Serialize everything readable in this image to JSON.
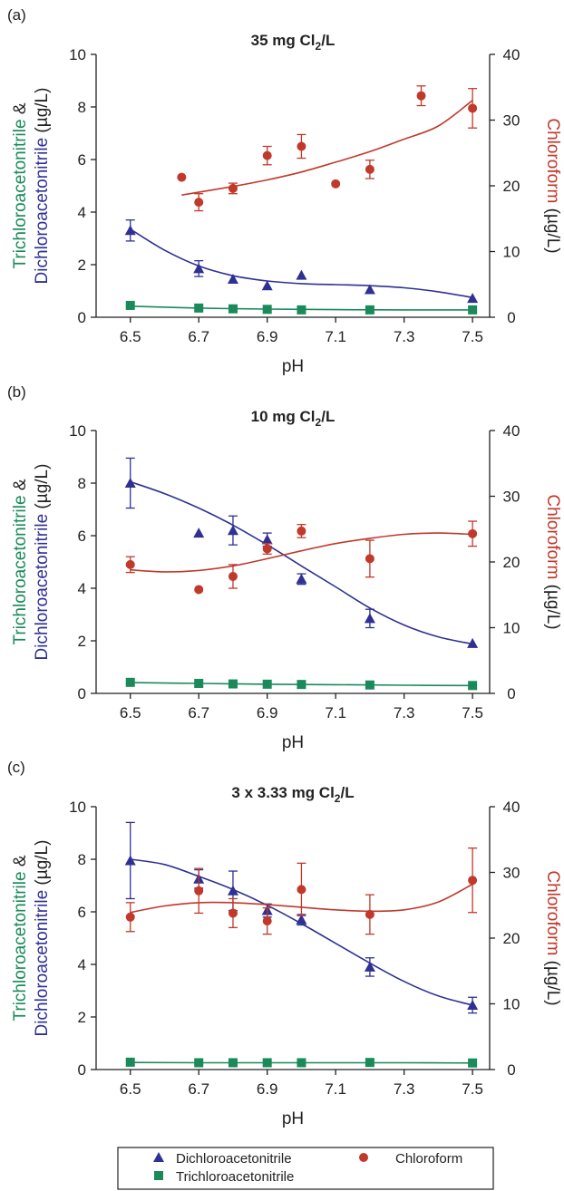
{
  "colors": {
    "dichloro": "#2e3192",
    "trichloro": "#1a8a5a",
    "chloroform": "#c0392b",
    "axis": "#222222"
  },
  "icons": {
    "dichloro": "blue-triangle-marker",
    "trichloro": "green-square-marker",
    "chloroform": "red-circle-marker"
  },
  "legend": {
    "dichloro": "Dichloroacetonitrile",
    "chloroform": "Chloroform",
    "trichloro": "Trichloroacetonitrile"
  },
  "chart_data": [
    {
      "type": "scatter",
      "panel_label": "(a)",
      "title_pre": "35 mg Cl",
      "title_sub": "2",
      "title_post": "/L",
      "xlabel": "pH",
      "ylabel_left_green": "Trichloroacetonitrile",
      "ylabel_left_amp": "&",
      "ylabel_left_blue": "Dichloroacetonitrile",
      "ylabel_left_unit": "(µg/L)",
      "ylabel_right_red": "Chloroform",
      "ylabel_right_unit": "(µg/L)",
      "xlim": [
        6.4,
        7.55
      ],
      "xticks": [
        "6.5",
        "6.7",
        "6.9",
        "7.1",
        "7.3",
        "7.5"
      ],
      "ylim_left": [
        0,
        10
      ],
      "yticks_left": [
        "0",
        "2",
        "4",
        "6",
        "8",
        "10"
      ],
      "ylim_right": [
        0,
        40
      ],
      "yticks_right": [
        "0",
        "10",
        "20",
        "30",
        "40"
      ],
      "series": [
        {
          "name": "Dichloroacetonitrile",
          "axis": "left",
          "marker": "triangle",
          "x": [
            6.5,
            6.7,
            6.8,
            6.9,
            7.0,
            7.2,
            7.5
          ],
          "y": [
            3.3,
            1.85,
            1.45,
            1.2,
            1.6,
            1.05,
            0.72
          ],
          "err": [
            0.4,
            0.3,
            0,
            0,
            0,
            0,
            0
          ],
          "fit": [
            [
              6.5,
              3.35
            ],
            [
              6.6,
              2.55
            ],
            [
              6.7,
              1.95
            ],
            [
              6.8,
              1.58
            ],
            [
              6.9,
              1.38
            ],
            [
              7.0,
              1.28
            ],
            [
              7.1,
              1.24
            ],
            [
              7.2,
              1.2
            ],
            [
              7.3,
              1.12
            ],
            [
              7.4,
              0.97
            ],
            [
              7.5,
              0.75
            ]
          ]
        },
        {
          "name": "Trichloroacetonitrile",
          "axis": "left",
          "marker": "square",
          "x": [
            6.5,
            6.7,
            6.8,
            6.9,
            7.0,
            7.2,
            7.5
          ],
          "y": [
            0.45,
            0.35,
            0.32,
            0.3,
            0.28,
            0.28,
            0.28
          ],
          "err": [
            0,
            0,
            0,
            0,
            0,
            0,
            0
          ],
          "fit": [
            [
              6.5,
              0.42
            ],
            [
              6.7,
              0.35
            ],
            [
              6.9,
              0.31
            ],
            [
              7.1,
              0.29
            ],
            [
              7.3,
              0.28
            ],
            [
              7.5,
              0.28
            ]
          ]
        },
        {
          "name": "Chloroform",
          "axis": "right",
          "marker": "circle",
          "x": [
            6.65,
            6.7,
            6.8,
            6.9,
            7.0,
            7.1,
            7.2,
            7.35,
            7.5
          ],
          "y": [
            21.3,
            17.5,
            19.6,
            24.6,
            26.0,
            20.3,
            22.5,
            33.7,
            31.8
          ],
          "err": [
            0,
            1.3,
            0.8,
            1.4,
            1.8,
            0,
            1.4,
            1.5,
            3.0
          ],
          "fit": [
            [
              6.65,
              18.6
            ],
            [
              6.8,
              19.9
            ],
            [
              6.9,
              20.9
            ],
            [
              7.0,
              22.1
            ],
            [
              7.1,
              23.6
            ],
            [
              7.2,
              25.2
            ],
            [
              7.3,
              27.1
            ],
            [
              7.4,
              29.1
            ],
            [
              7.5,
              33.0
            ]
          ]
        }
      ]
    },
    {
      "type": "scatter",
      "panel_label": "(b)",
      "title_pre": "10 mg Cl",
      "title_sub": "2",
      "title_post": "/L",
      "xlabel": "pH",
      "ylabel_left_green": "Trichloroacetonitrile",
      "ylabel_left_amp": "&",
      "ylabel_left_blue": "Dichloroacetonitrile",
      "ylabel_left_unit": "(µg/L)",
      "ylabel_right_red": "Chloroform",
      "ylabel_right_unit": "(µg/L)",
      "xlim": [
        6.4,
        7.55
      ],
      "xticks": [
        "6.5",
        "6.7",
        "6.9",
        "7.1",
        "7.3",
        "7.5"
      ],
      "ylim_left": [
        0,
        10
      ],
      "yticks_left": [
        "0",
        "2",
        "4",
        "6",
        "8",
        "10"
      ],
      "ylim_right": [
        0,
        40
      ],
      "yticks_right": [
        "0",
        "10",
        "20",
        "30",
        "40"
      ],
      "series": [
        {
          "name": "Dichloroacetonitrile",
          "axis": "left",
          "marker": "triangle",
          "x": [
            6.5,
            6.7,
            6.8,
            6.9,
            7.0,
            7.2,
            7.5
          ],
          "y": [
            8.0,
            6.1,
            6.2,
            5.85,
            4.35,
            2.85,
            1.9
          ],
          "err": [
            0.95,
            0,
            0.55,
            0.25,
            0.2,
            0.35,
            0
          ],
          "fit": [
            [
              6.5,
              8.05
            ],
            [
              6.6,
              7.6
            ],
            [
              6.7,
              7.05
            ],
            [
              6.8,
              6.4
            ],
            [
              6.9,
              5.65
            ],
            [
              7.0,
              4.85
            ],
            [
              7.1,
              4.05
            ],
            [
              7.2,
              3.25
            ],
            [
              7.3,
              2.6
            ],
            [
              7.4,
              2.15
            ],
            [
              7.5,
              1.88
            ]
          ]
        },
        {
          "name": "Trichloroacetonitrile",
          "axis": "left",
          "marker": "square",
          "x": [
            6.5,
            6.7,
            6.8,
            6.9,
            7.0,
            7.2,
            7.5
          ],
          "y": [
            0.42,
            0.38,
            0.36,
            0.35,
            0.34,
            0.32,
            0.3
          ],
          "err": [
            0,
            0,
            0,
            0,
            0,
            0,
            0
          ],
          "fit": [
            [
              6.5,
              0.41
            ],
            [
              6.7,
              0.38
            ],
            [
              6.9,
              0.35
            ],
            [
              7.1,
              0.33
            ],
            [
              7.3,
              0.31
            ],
            [
              7.5,
              0.3
            ]
          ]
        },
        {
          "name": "Chloroform",
          "axis": "right",
          "marker": "circle",
          "x": [
            6.5,
            6.7,
            6.8,
            6.9,
            7.0,
            7.2,
            7.5
          ],
          "y": [
            19.6,
            15.8,
            17.8,
            22.0,
            24.7,
            20.5,
            24.3
          ],
          "err": [
            1.2,
            0,
            1.8,
            0.8,
            1.0,
            2.8,
            1.9
          ],
          "fit": [
            [
              6.5,
              18.8
            ],
            [
              6.6,
              18.5
            ],
            [
              6.7,
              18.7
            ],
            [
              6.8,
              19.4
            ],
            [
              6.9,
              20.5
            ],
            [
              7.0,
              21.7
            ],
            [
              7.1,
              22.8
            ],
            [
              7.2,
              23.6
            ],
            [
              7.3,
              24.2
            ],
            [
              7.4,
              24.4
            ],
            [
              7.5,
              24.2
            ]
          ]
        }
      ]
    },
    {
      "type": "scatter",
      "panel_label": "(c)",
      "title_pre": "3 x 3.33 mg Cl",
      "title_sub": "2",
      "title_post": "/L",
      "xlabel": "pH",
      "ylabel_left_green": "Trichloroacetonitrile",
      "ylabel_left_amp": "&",
      "ylabel_left_blue": "Dichloroacetonitrile",
      "ylabel_left_unit": "(µg/L)",
      "ylabel_right_red": "Chloroform",
      "ylabel_right_unit": "(µg/L)",
      "xlim": [
        6.4,
        7.55
      ],
      "xticks": [
        "6.5",
        "6.7",
        "6.9",
        "7.1",
        "7.3",
        "7.5"
      ],
      "ylim_left": [
        0,
        10
      ],
      "yticks_left": [
        "0",
        "2",
        "4",
        "6",
        "8",
        "10"
      ],
      "ylim_right": [
        0,
        40
      ],
      "yticks_right": [
        "0",
        "10",
        "20",
        "30",
        "40"
      ],
      "series": [
        {
          "name": "Dichloroacetonitrile",
          "axis": "left",
          "marker": "triangle",
          "x": [
            6.5,
            6.7,
            6.8,
            6.9,
            7.0,
            7.2,
            7.5
          ],
          "y": [
            7.95,
            7.25,
            6.8,
            6.05,
            5.7,
            3.9,
            2.45
          ],
          "err": [
            1.45,
            0.35,
            0.75,
            0.25,
            0.2,
            0.35,
            0.3
          ],
          "fit": [
            [
              6.5,
              8.0
            ],
            [
              6.6,
              7.8
            ],
            [
              6.7,
              7.35
            ],
            [
              6.8,
              6.85
            ],
            [
              6.9,
              6.25
            ],
            [
              7.0,
              5.55
            ],
            [
              7.1,
              4.8
            ],
            [
              7.2,
              4.05
            ],
            [
              7.3,
              3.35
            ],
            [
              7.4,
              2.8
            ],
            [
              7.5,
              2.45
            ]
          ]
        },
        {
          "name": "Trichloroacetonitrile",
          "axis": "left",
          "marker": "square",
          "x": [
            6.5,
            6.7,
            6.8,
            6.9,
            7.0,
            7.2,
            7.5
          ],
          "y": [
            0.28,
            0.26,
            0.26,
            0.26,
            0.26,
            0.27,
            0.25
          ],
          "err": [
            0,
            0,
            0,
            0,
            0,
            0,
            0
          ],
          "fit": [
            [
              6.5,
              0.27
            ],
            [
              6.7,
              0.26
            ],
            [
              6.9,
              0.26
            ],
            [
              7.1,
              0.26
            ],
            [
              7.3,
              0.26
            ],
            [
              7.5,
              0.25
            ]
          ]
        },
        {
          "name": "Chloroform",
          "axis": "right",
          "marker": "circle",
          "x": [
            6.5,
            6.7,
            6.8,
            6.9,
            7.0,
            7.2,
            7.5
          ],
          "y": [
            23.2,
            27.2,
            23.8,
            22.6,
            27.4,
            23.6,
            28.8
          ],
          "err": [
            2.2,
            3.4,
            2.2,
            2.0,
            4.0,
            3.0,
            4.9
          ],
          "fit": [
            [
              6.5,
              23.9
            ],
            [
              6.6,
              24.9
            ],
            [
              6.7,
              25.4
            ],
            [
              6.8,
              25.4
            ],
            [
              6.9,
              25.1
            ],
            [
              7.0,
              24.7
            ],
            [
              7.1,
              24.3
            ],
            [
              7.2,
              24.1
            ],
            [
              7.3,
              24.3
            ],
            [
              7.4,
              25.5
            ],
            [
              7.5,
              28.2
            ]
          ]
        }
      ]
    }
  ]
}
